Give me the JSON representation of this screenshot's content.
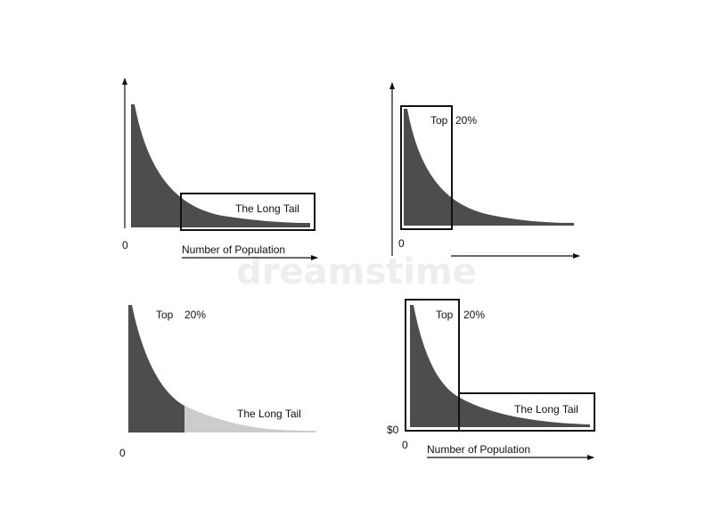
{
  "colors": {
    "curve_fill": "#4d4d4d",
    "tail_light": "#cccccc",
    "frame": "#111111",
    "watermark": "#eeeeee"
  },
  "watermark": "dreamstime",
  "panels": {
    "top_left": {
      "origin_label": "0",
      "x_axis_label": "Number of Population",
      "box_label": "The Long Tail"
    },
    "top_right": {
      "origin_label": "0",
      "box_label": "Top",
      "box_percent": "20%"
    },
    "bottom_left": {
      "origin_label": "0",
      "head_label": "Top",
      "head_percent": "20%",
      "tail_label": "The Long Tail"
    },
    "bottom_right": {
      "y_origin_label": "$0",
      "origin_label": "0",
      "x_axis_label": "Number of Population",
      "head_label": "Top",
      "head_percent": "20%",
      "tail_label": "The Long Tail"
    }
  }
}
